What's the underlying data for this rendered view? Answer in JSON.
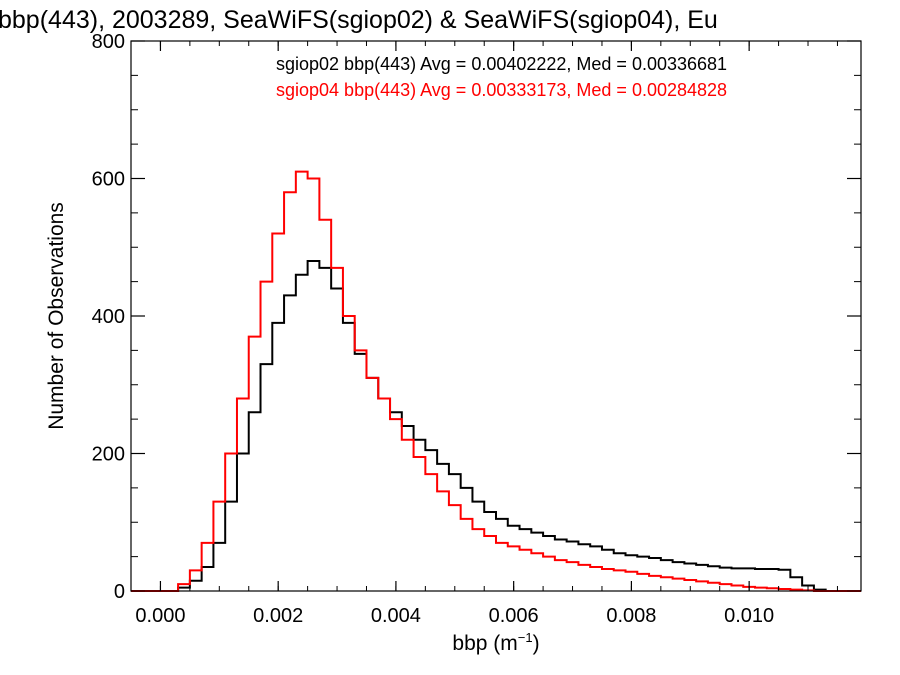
{
  "chart_data": {
    "type": "line",
    "title": "bbp(443), 2003289, SeaWiFS(sgiop02) & SeaWiFS(sgiop04), Eu",
    "xlabel_main": "bbp (m",
    "xlabel_sup": "−1",
    "xlabel_tail": ")",
    "ylabel": "Number of Observations",
    "xlim": [
      -0.0005,
      0.0119
    ],
    "ylim": [
      0,
      800
    ],
    "x_ticks": [
      {
        "value": 0.0,
        "label": "0.000"
      },
      {
        "value": 0.002,
        "label": "0.002"
      },
      {
        "value": 0.004,
        "label": "0.004"
      },
      {
        "value": 0.006,
        "label": "0.006"
      },
      {
        "value": 0.008,
        "label": "0.008"
      },
      {
        "value": 0.01,
        "label": "0.010"
      }
    ],
    "y_ticks": [
      {
        "value": 0,
        "label": "0"
      },
      {
        "value": 200,
        "label": "200"
      },
      {
        "value": 400,
        "label": "400"
      },
      {
        "value": 600,
        "label": "600"
      },
      {
        "value": 800,
        "label": "800"
      }
    ],
    "annotations": [
      {
        "text": "sgiop02 bbp(443) Avg = 0.00402222, Med = 0.00336681",
        "color": "#000000"
      },
      {
        "text": "sgiop04 bbp(443) Avg = 0.00333173, Med = 0.00284828",
        "color": "#ff0000"
      }
    ],
    "series": [
      {
        "color": "#000000",
        "x": [
          0.0004,
          0.0006,
          0.0008,
          0.001,
          0.0012,
          0.0014,
          0.0016,
          0.0018,
          0.002,
          0.0022,
          0.0024,
          0.0026,
          0.0028,
          0.003,
          0.0032,
          0.0034,
          0.0036,
          0.0038,
          0.004,
          0.0042,
          0.0044,
          0.0046,
          0.0048,
          0.005,
          0.0052,
          0.0054,
          0.0056,
          0.0058,
          0.006,
          0.0062,
          0.0064,
          0.0066,
          0.0068,
          0.007,
          0.0072,
          0.0074,
          0.0076,
          0.0078,
          0.008,
          0.0082,
          0.0084,
          0.0086,
          0.0088,
          0.009,
          0.0092,
          0.0094,
          0.0096,
          0.0098,
          0.01,
          0.0102,
          0.0104,
          0.0106,
          0.0108,
          0.011,
          0.0112
        ],
        "values": [
          5,
          15,
          35,
          70,
          130,
          200,
          260,
          330,
          390,
          430,
          460,
          480,
          470,
          440,
          390,
          345,
          310,
          280,
          260,
          240,
          220,
          205,
          185,
          170,
          150,
          130,
          115,
          105,
          95,
          90,
          85,
          80,
          75,
          72,
          68,
          65,
          60,
          55,
          52,
          50,
          48,
          45,
          42,
          40,
          38,
          36,
          34,
          33,
          33,
          32,
          32,
          31,
          20,
          8,
          2
        ]
      },
      {
        "color": "#ff0000",
        "x": [
          0.0004,
          0.0006,
          0.0008,
          0.001,
          0.0012,
          0.0014,
          0.0016,
          0.0018,
          0.002,
          0.0022,
          0.0024,
          0.0026,
          0.0028,
          0.003,
          0.0032,
          0.0034,
          0.0036,
          0.0038,
          0.004,
          0.0042,
          0.0044,
          0.0046,
          0.0048,
          0.005,
          0.0052,
          0.0054,
          0.0056,
          0.0058,
          0.006,
          0.0062,
          0.0064,
          0.0066,
          0.0068,
          0.007,
          0.0072,
          0.0074,
          0.0076,
          0.0078,
          0.008,
          0.0082,
          0.0084,
          0.0086,
          0.0088,
          0.009,
          0.0092,
          0.0094,
          0.0096,
          0.0098,
          0.01,
          0.0102,
          0.0104,
          0.0106,
          0.0108,
          0.011,
          0.0112
        ],
        "values": [
          10,
          30,
          70,
          130,
          200,
          280,
          370,
          450,
          520,
          580,
          610,
          600,
          540,
          470,
          400,
          350,
          310,
          280,
          250,
          220,
          195,
          170,
          145,
          125,
          105,
          90,
          80,
          70,
          65,
          60,
          55,
          50,
          45,
          42,
          38,
          35,
          32,
          30,
          28,
          25,
          22,
          20,
          18,
          16,
          14,
          12,
          10,
          8,
          6,
          5,
          4,
          3,
          2,
          1,
          0
        ]
      }
    ]
  }
}
